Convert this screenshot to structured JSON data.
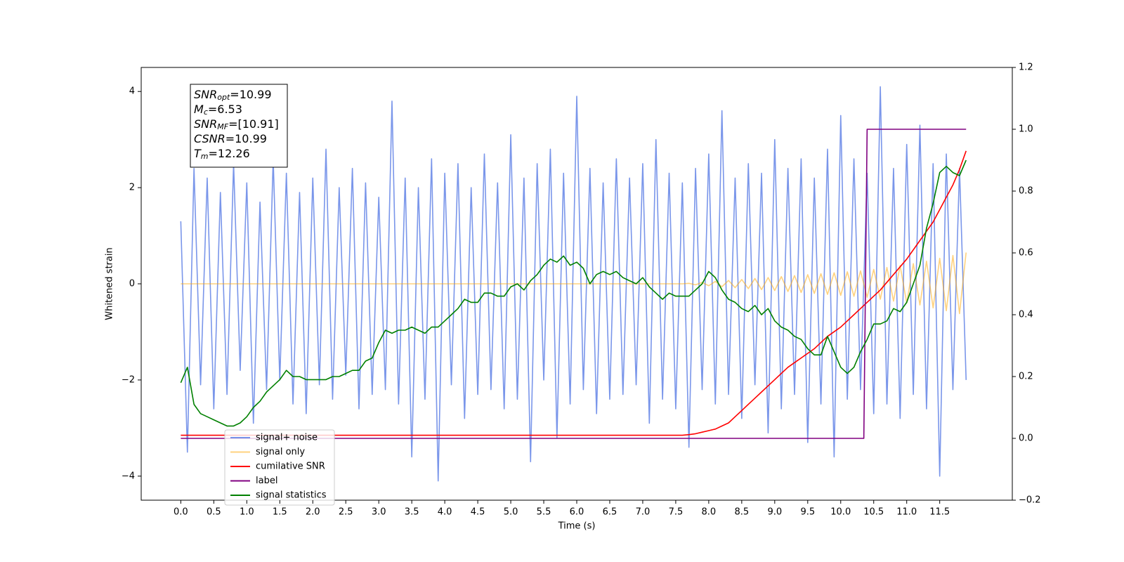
{
  "chart_data": {
    "type": "line",
    "xlabel": "Time (s)",
    "ylabel": "Whitened strain",
    "annotations": [
      {
        "symbol": "SNR",
        "subscript": "opt",
        "text": "=10.99"
      },
      {
        "symbol": "M",
        "subscript": "c",
        "text": "=6.53"
      },
      {
        "symbol": "SNR",
        "subscript": "MF",
        "text": "=[10.91]"
      },
      {
        "symbol": "CSNR",
        "subscript": "",
        "text": "=10.99"
      },
      {
        "symbol": "T",
        "subscript": "m",
        "text": "=12.26"
      }
    ],
    "xlim": [
      -0.6,
      12.6
    ],
    "xticks": [
      {
        "value": 0,
        "label": "0.0"
      },
      0.5,
      {
        "value": 1,
        "label": "1.0"
      },
      1.5,
      {
        "value": 2,
        "label": "2.0"
      },
      2.5,
      {
        "value": 3,
        "label": "3.0"
      },
      3.5,
      {
        "value": 4,
        "label": "4.0"
      },
      4.5,
      {
        "value": 5,
        "label": "5.0"
      },
      5.5,
      {
        "value": 6,
        "label": "6.0"
      },
      6.5,
      {
        "value": 7,
        "label": "7.0"
      },
      7.5,
      {
        "value": 8,
        "label": "8.0"
      },
      8.5,
      {
        "value": 9,
        "label": "9.0"
      },
      9.5,
      {
        "value": 10,
        "label": "10.0"
      },
      10.5,
      {
        "value": 11,
        "label": "11.0"
      },
      11.5
    ],
    "ylim": [
      -4.5,
      4.5
    ],
    "yticks": [
      {
        "value": -4,
        "label": "−4"
      },
      {
        "value": -2,
        "label": "−2"
      },
      0,
      2,
      4
    ],
    "y2lim": [
      -0.2,
      1.2
    ],
    "y2ticks": [
      {
        "value": -0.2,
        "label": "−0.2"
      },
      {
        "value": 0,
        "label": "0.0"
      },
      0.2,
      0.4,
      0.6,
      0.8,
      {
        "value": 1,
        "label": "1.0"
      },
      1.2
    ],
    "legend": "lower left",
    "x": [
      0,
      0.1,
      0.2,
      0.3,
      0.4,
      0.5,
      0.6,
      0.7,
      0.8,
      0.9,
      1,
      1.1,
      1.2,
      1.3,
      1.4,
      1.5,
      1.6,
      1.7,
      1.8,
      1.9,
      2,
      2.1,
      2.2,
      2.3,
      2.4,
      2.5,
      2.6,
      2.7,
      2.8,
      2.9,
      3,
      3.1,
      3.2,
      3.3,
      3.4,
      3.5,
      3.6,
      3.7,
      3.8,
      3.9,
      4,
      4.1,
      4.2,
      4.3,
      4.4,
      4.5,
      4.6,
      4.7,
      4.8,
      4.9,
      5,
      5.1,
      5.2,
      5.3,
      5.4,
      5.5,
      5.6,
      5.7,
      5.8,
      5.9,
      6,
      6.1,
      6.2,
      6.3,
      6.4,
      6.5,
      6.6,
      6.7,
      6.8,
      6.9,
      7,
      7.1,
      7.2,
      7.3,
      7.4,
      7.5,
      7.6,
      7.7,
      7.8,
      7.9,
      8,
      8.1,
      8.2,
      8.3,
      8.4,
      8.5,
      8.6,
      8.7,
      8.8,
      8.9,
      9,
      9.1,
      9.2,
      9.3,
      9.4,
      9.5,
      9.6,
      9.7,
      9.8,
      9.9,
      10,
      10.1,
      10.2,
      10.3,
      10.4,
      10.5,
      10.6,
      10.7,
      10.8,
      10.9,
      11,
      11.1,
      11.2,
      11.3,
      11.4,
      11.5,
      11.6,
      11.7,
      11.8,
      11.9
    ],
    "series": [
      {
        "name": "signal+ noise",
        "color": "#4169e1",
        "alpha": 0.7,
        "values": [
          1.3,
          -3.5,
          2.4,
          -2.1,
          2.2,
          -2.6,
          1.9,
          -2.3,
          2.5,
          -1.8,
          2.1,
          -2.9,
          1.7,
          -2.2,
          2.6,
          -2.0,
          2.3,
          -2.5,
          1.9,
          -2.7,
          2.2,
          -2.1,
          2.8,
          -2.4,
          2.0,
          -1.9,
          2.4,
          -2.6,
          2.1,
          -2.3,
          1.8,
          -2.2,
          3.8,
          -2.5,
          2.2,
          -3.6,
          2.0,
          -2.4,
          2.6,
          -4.1,
          2.3,
          -2.1,
          2.5,
          -2.8,
          2.0,
          -2.3,
          2.7,
          -2.2,
          2.1,
          -2.6,
          3.1,
          -2.4,
          2.2,
          -3.7,
          2.5,
          -2.0,
          2.8,
          -3.2,
          2.3,
          -2.5,
          3.9,
          -2.2,
          2.4,
          -2.7,
          2.1,
          -2.4,
          2.6,
          -2.3,
          2.2,
          -2.1,
          2.5,
          -2.9,
          3.0,
          -2.4,
          2.3,
          -2.6,
          2.1,
          -3.4,
          2.4,
          -2.2,
          2.7,
          -2.5,
          3.6,
          -2.3,
          2.2,
          -2.8,
          2.5,
          -2.1,
          2.3,
          -3.1,
          3.0,
          -2.6,
          2.4,
          -2.3,
          2.6,
          -3.3,
          2.2,
          -2.5,
          2.8,
          -3.6,
          3.5,
          -2.4,
          2.6,
          -2.2,
          2.3,
          -2.7,
          4.1,
          -2.5,
          2.4,
          -2.8,
          2.9,
          -2.3,
          3.3,
          -2.6,
          2.5,
          -4.0,
          2.7,
          -2.2,
          2.4,
          -2.0
        ]
      },
      {
        "name": "signal only",
        "color": "#ffa500",
        "alpha": 0.5,
        "values": [
          0,
          0,
          0,
          0,
          0,
          0,
          0,
          0,
          0,
          0,
          0,
          0,
          0,
          0,
          0,
          0,
          0,
          0,
          0,
          0,
          0,
          0,
          0,
          0,
          0,
          0,
          0,
          0,
          0,
          0,
          0,
          0,
          0,
          0,
          0,
          0,
          0,
          0,
          0,
          0,
          0,
          0,
          0,
          0,
          0,
          0,
          0,
          0,
          0,
          0,
          0,
          0,
          0,
          0,
          0,
          0,
          0,
          0,
          0,
          0,
          0,
          0,
          0,
          0,
          0,
          0,
          0,
          0,
          0,
          0,
          0,
          0,
          0,
          0,
          0,
          0,
          0,
          0.01,
          -0.02,
          0.03,
          -0.04,
          0.05,
          -0.06,
          0.07,
          -0.08,
          0.09,
          -0.1,
          0.11,
          -0.12,
          0.13,
          -0.14,
          0.15,
          -0.16,
          0.17,
          -0.18,
          0.19,
          -0.2,
          0.21,
          -0.22,
          0.23,
          -0.24,
          0.25,
          -0.26,
          0.27,
          -0.28,
          0.3,
          -0.32,
          0.34,
          -0.36,
          0.38,
          -0.4,
          0.42,
          -0.44,
          0.47,
          -0.5,
          0.53,
          -0.56,
          0.59,
          -0.62,
          0.65
        ]
      },
      {
        "name": "cumilative SNR",
        "color": "#ff0000",
        "alpha": 1,
        "axis": "y2",
        "values": [
          0.01,
          0.01,
          0.01,
          0.01,
          0.01,
          0.01,
          0.01,
          0.01,
          0.01,
          0.01,
          0.01,
          0.01,
          0.01,
          0.01,
          0.01,
          0.01,
          0.01,
          0.01,
          0.01,
          0.01,
          0.01,
          0.01,
          0.01,
          0.01,
          0.01,
          0.01,
          0.01,
          0.01,
          0.01,
          0.01,
          0.01,
          0.01,
          0.01,
          0.01,
          0.01,
          0.01,
          0.01,
          0.01,
          0.01,
          0.01,
          0.01,
          0.01,
          0.01,
          0.01,
          0.01,
          0.01,
          0.01,
          0.01,
          0.01,
          0.01,
          0.01,
          0.01,
          0.01,
          0.01,
          0.01,
          0.01,
          0.01,
          0.01,
          0.01,
          0.01,
          0.01,
          0.01,
          0.01,
          0.01,
          0.01,
          0.01,
          0.01,
          0.01,
          0.01,
          0.01,
          0.01,
          0.01,
          0.01,
          0.01,
          0.01,
          0.01,
          0.01,
          0.012,
          0.015,
          0.02,
          0.025,
          0.03,
          0.04,
          0.05,
          0.07,
          0.09,
          0.11,
          0.13,
          0.15,
          0.17,
          0.19,
          0.21,
          0.23,
          0.245,
          0.26,
          0.275,
          0.29,
          0.31,
          0.33,
          0.345,
          0.36,
          0.38,
          0.4,
          0.42,
          0.44,
          0.46,
          0.48,
          0.505,
          0.53,
          0.555,
          0.58,
          0.61,
          0.64,
          0.67,
          0.7,
          0.74,
          0.78,
          0.82,
          0.87,
          0.93
        ]
      },
      {
        "name": "label",
        "color": "#800080",
        "alpha": 1,
        "axis": "y2",
        "x": [
          0,
          10.35,
          10.4,
          11.9
        ],
        "values": [
          0,
          0,
          1,
          1
        ]
      },
      {
        "name": "signal statistics",
        "color": "#008000",
        "alpha": 1,
        "axis": "y2",
        "values": [
          0.18,
          0.23,
          0.11,
          0.08,
          0.07,
          0.06,
          0.05,
          0.04,
          0.04,
          0.05,
          0.07,
          0.1,
          0.12,
          0.15,
          0.17,
          0.19,
          0.22,
          0.2,
          0.2,
          0.19,
          0.19,
          0.19,
          0.19,
          0.2,
          0.2,
          0.21,
          0.22,
          0.22,
          0.25,
          0.26,
          0.31,
          0.35,
          0.34,
          0.35,
          0.35,
          0.36,
          0.35,
          0.34,
          0.36,
          0.36,
          0.38,
          0.4,
          0.42,
          0.45,
          0.44,
          0.44,
          0.47,
          0.47,
          0.46,
          0.46,
          0.49,
          0.5,
          0.48,
          0.51,
          0.53,
          0.56,
          0.58,
          0.57,
          0.59,
          0.56,
          0.57,
          0.55,
          0.5,
          0.53,
          0.54,
          0.53,
          0.54,
          0.52,
          0.51,
          0.5,
          0.52,
          0.49,
          0.47,
          0.45,
          0.47,
          0.46,
          0.46,
          0.46,
          0.48,
          0.5,
          0.54,
          0.52,
          0.48,
          0.45,
          0.44,
          0.42,
          0.41,
          0.43,
          0.4,
          0.42,
          0.38,
          0.36,
          0.35,
          0.33,
          0.32,
          0.29,
          0.27,
          0.27,
          0.33,
          0.28,
          0.23,
          0.21,
          0.23,
          0.28,
          0.32,
          0.37,
          0.37,
          0.38,
          0.42,
          0.41,
          0.44,
          0.5,
          0.56,
          0.68,
          0.76,
          0.86,
          0.88,
          0.86,
          0.85,
          0.9
        ]
      }
    ]
  }
}
